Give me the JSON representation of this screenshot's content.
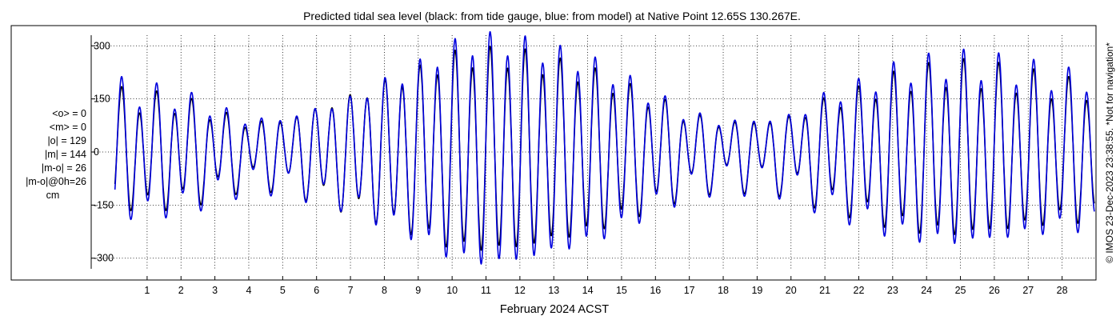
{
  "chart_data": {
    "type": "line",
    "title": "Predicted tidal sea level (black: from tide gauge, blue: from model) at Native Point 12.65S 130.267E.",
    "xlabel": "February 2024 ACST",
    "ylabel": "",
    "xlim": [
      -0.65,
      29.0
    ],
    "ylim": [
      -330,
      330
    ],
    "grid": true,
    "y_ticks": [
      -300,
      -150,
      0,
      150,
      300
    ],
    "y_tick_labels": [
      "-300",
      "-150",
      "0",
      "150",
      "300"
    ],
    "x_ticks": [
      1,
      2,
      3,
      4,
      5,
      6,
      7,
      8,
      9,
      10,
      11,
      12,
      13,
      14,
      15,
      16,
      17,
      18,
      19,
      20,
      21,
      22,
      23,
      24,
      25,
      26,
      27,
      28
    ],
    "x_tick_labels": [
      "1",
      "2",
      "3",
      "4",
      "5",
      "6",
      "7",
      "8",
      "9",
      "10",
      "11",
      "12",
      "13",
      "14",
      "15",
      "16",
      "17",
      "18",
      "19",
      "20",
      "21",
      "22",
      "23",
      "24",
      "25",
      "26",
      "27",
      "28"
    ],
    "series_colors": [
      "#000000",
      "#0000dd"
    ],
    "series": [
      {
        "role": "tide gauge",
        "tidal_envelope": {
          "time_day": [
            0,
            2,
            4,
            5,
            7,
            9,
            10,
            11,
            12,
            13,
            14,
            15,
            16,
            17,
            18,
            19,
            20,
            21,
            22,
            23,
            24,
            25,
            26,
            27,
            28,
            29
          ],
          "semidiurnal_amplitude_cm": [
            150,
            135,
            75,
            85,
            150,
            220,
            260,
            270,
            265,
            240,
            220,
            180,
            140,
            95,
            75,
            80,
            90,
            135,
            160,
            195,
            215,
            225,
            215,
            200,
            180,
            175
          ],
          "diurnal_amplitude_cm": [
            40,
            40,
            35,
            32,
            30,
            30,
            30,
            30,
            30,
            30,
            30,
            30,
            35,
            38,
            40,
            40,
            40,
            40,
            40,
            40,
            40,
            40,
            40,
            40,
            40,
            40
          ]
        }
      },
      {
        "role": "model",
        "tidal_envelope": {
          "time_day": [
            0,
            2,
            4,
            5,
            7,
            9,
            10,
            11,
            12,
            13,
            14,
            15,
            16,
            17,
            18,
            19,
            20,
            21,
            22,
            23,
            24,
            25,
            26,
            27,
            28,
            29
          ],
          "semidiurnal_amplitude_cm": [
            175,
            150,
            85,
            90,
            145,
            235,
            290,
            310,
            300,
            275,
            250,
            205,
            150,
            100,
            80,
            85,
            95,
            150,
            180,
            220,
            240,
            250,
            240,
            225,
            205,
            200
          ],
          "diurnal_amplitude_cm": [
            45,
            45,
            38,
            35,
            32,
            32,
            32,
            32,
            32,
            32,
            32,
            32,
            38,
            40,
            42,
            42,
            42,
            42,
            42,
            42,
            42,
            42,
            42,
            42,
            42,
            42
          ]
        }
      }
    ],
    "stats": [
      "<o> = 0",
      "<m> = 0",
      "|o| = 129",
      "|m| = 144",
      "|m-o| = 26",
      "|m-o|@0h=26",
      "cm"
    ],
    "side_note": "© IMOS 23-Dec-2023 23:38:55. *Not for navigation*"
  }
}
